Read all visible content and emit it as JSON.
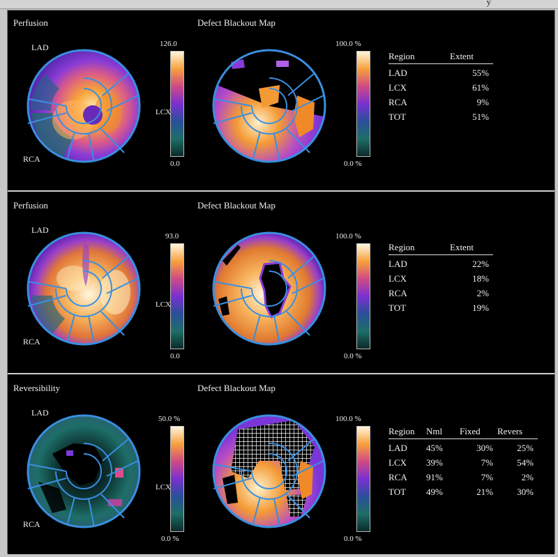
{
  "panels": [
    {
      "left_title": "Perfusion",
      "right_title": "Defect Blackout Map",
      "labels": {
        "lad": "LAD",
        "rca": "RCA",
        "lcx": "LCX"
      },
      "scale_left": {
        "max": "126.0",
        "min": "0.0"
      },
      "scale_right": {
        "max": "100.0 %",
        "min": "0.0 %"
      },
      "table": {
        "headers": [
          "Region",
          "Extent"
        ],
        "rows": [
          [
            "LAD",
            "55%"
          ],
          [
            "LCX",
            "61%"
          ],
          [
            "RCA",
            "9%"
          ],
          [
            "TOT",
            "51%"
          ]
        ]
      }
    },
    {
      "left_title": "Perfusion",
      "right_title": "Defect Blackout Map",
      "labels": {
        "lad": "LAD",
        "rca": "RCA",
        "lcx": "LCX"
      },
      "scale_left": {
        "max": "93.0",
        "min": "0.0"
      },
      "scale_right": {
        "max": "100.0 %",
        "min": "0.0 %"
      },
      "table": {
        "headers": [
          "Region",
          "Extent"
        ],
        "rows": [
          [
            "LAD",
            "22%"
          ],
          [
            "LCX",
            "18%"
          ],
          [
            "RCA",
            "2%"
          ],
          [
            "TOT",
            "19%"
          ]
        ]
      }
    },
    {
      "left_title": "Reversibility",
      "right_title": "Defect Blackout Map",
      "labels": {
        "lad": "LAD",
        "rca": "RCA",
        "lcx": "LCX"
      },
      "scale_left": {
        "max": "50.0 %",
        "min": "0.0 %"
      },
      "scale_right": {
        "max": "100.0 %",
        "min": "0.0 %"
      },
      "table": {
        "headers": [
          "Region",
          "Nml",
          "Fixed",
          "Revers"
        ],
        "rows": [
          [
            "LAD",
            "45%",
            "30%",
            "25%"
          ],
          [
            "LCX",
            "39%",
            "7%",
            "54%"
          ],
          [
            "RCA",
            "91%",
            "7%",
            "2%"
          ],
          [
            "TOT",
            "49%",
            "21%",
            "30%"
          ]
        ]
      }
    }
  ],
  "colors": {
    "ring": "#3a8fe0",
    "hot": "#fff4d8",
    "orange": "#f08a28",
    "purple": "#8a3bd6",
    "teal": "#1e6e68",
    "black": "#000000"
  }
}
